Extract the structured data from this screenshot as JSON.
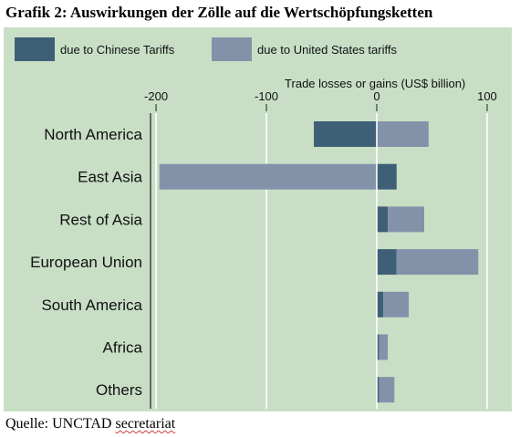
{
  "title": "Grafik 2: Auswirkungen der Zölle auf die Wertschöpfungsketten",
  "source": {
    "prefix": "Quelle: UNCTAD ",
    "underlined": "secretariat"
  },
  "colors": {
    "panel": "#c8dfc6",
    "chinese": "#3f5f76",
    "us": "#8293a9",
    "grid": "#ffffff"
  },
  "chart_data": {
    "type": "bar",
    "stacked": true,
    "orientation": "horizontal",
    "title": "",
    "xlabel": "Trade losses or gains (US$ billion)",
    "xlim": [
      -205,
      105
    ],
    "x_ticks": [
      -200,
      -100,
      0,
      100
    ],
    "grid": true,
    "legend_position": "top",
    "categories": [
      "North America",
      "East Asia",
      "Rest of Asia",
      "European Union",
      "South America",
      "Africa",
      "Others"
    ],
    "series": [
      {
        "name": "due to Chinese Tariffs",
        "values": [
          -57,
          18,
          10,
          18,
          6,
          2,
          2
        ]
      },
      {
        "name": "due to United States tariffs",
        "values": [
          47,
          -197,
          33,
          74,
          23,
          8,
          14
        ]
      }
    ]
  }
}
